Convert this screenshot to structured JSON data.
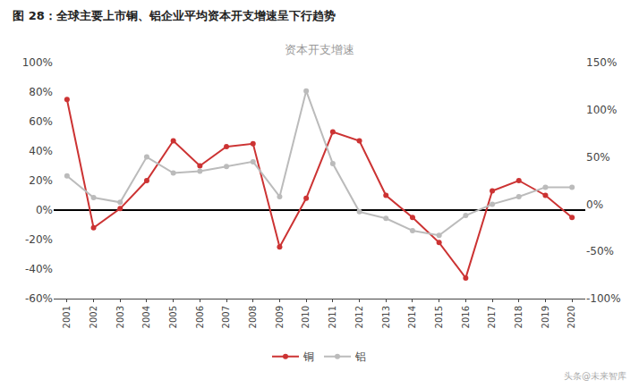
{
  "chart_data": {
    "type": "line",
    "title": "图 28：全球主要上市铜、铝企业平均资本开支增速呈下行趋势",
    "subtitle": "资本开支增速",
    "annotations": [
      "头条@未来智库"
    ],
    "x": [
      2001,
      2002,
      2003,
      2004,
      2005,
      2006,
      2007,
      2008,
      2009,
      2010,
      2011,
      2012,
      2013,
      2014,
      2015,
      2016,
      2017,
      2018,
      2019,
      2020
    ],
    "xlim": [
      2000.5,
      2020.5
    ],
    "xticks": [
      2001,
      2002,
      2003,
      2004,
      2005,
      2006,
      2007,
      2008,
      2009,
      2010,
      2011,
      2012,
      2013,
      2014,
      2015,
      2016,
      2017,
      2018,
      2019,
      2020
    ],
    "series": [
      {
        "name": "铜",
        "color": "#cc3333",
        "marker": "circle",
        "line_style": "solid",
        "values": [
          0.75,
          -0.12,
          0.01,
          0.2,
          0.47,
          0.3,
          0.43,
          0.45,
          -0.25,
          0.08,
          0.53,
          0.47,
          0.1,
          -0.05,
          -0.22,
          -0.46,
          0.13,
          0.2,
          0.1,
          -0.05
        ]
      },
      {
        "name": "铝",
        "color": "#bbbbbb",
        "marker": "circle",
        "line_style": "solid",
        "axis": "y2",
        "values": [
          0.3,
          0.07,
          0.02,
          0.5,
          0.33,
          0.35,
          0.4,
          0.45,
          0.08,
          1.2,
          0.43,
          -0.08,
          -0.15,
          -0.28,
          -0.33,
          -0.12,
          0.0,
          0.08,
          0.18,
          0.18
        ]
      }
    ],
    "ylim": [
      -0.6,
      1.0
    ],
    "yticks": [
      {
        "value": -0.6,
        "label": "-60%"
      },
      {
        "value": -0.4,
        "label": "-40%"
      },
      {
        "value": -0.2,
        "label": "-20%"
      },
      {
        "value": 0.0,
        "label": "0%"
      },
      {
        "value": 0.2,
        "label": "20%"
      },
      {
        "value": 0.4,
        "label": "40%"
      },
      {
        "value": 0.6,
        "label": "60%"
      },
      {
        "value": 0.8,
        "label": "80%"
      },
      {
        "value": 1.0,
        "label": "100%"
      }
    ],
    "y2lim": [
      -1.0,
      1.5
    ],
    "y2ticks": [
      {
        "value": -1.0,
        "label": "-100%"
      },
      {
        "value": -0.5,
        "label": "-50%"
      },
      {
        "value": 0.0,
        "label": "0%"
      },
      {
        "value": 0.5,
        "label": "50%"
      },
      {
        "value": 1.0,
        "label": "100%"
      },
      {
        "value": 1.5,
        "label": "150%"
      }
    ],
    "grid": false,
    "legend": "bottom"
  }
}
